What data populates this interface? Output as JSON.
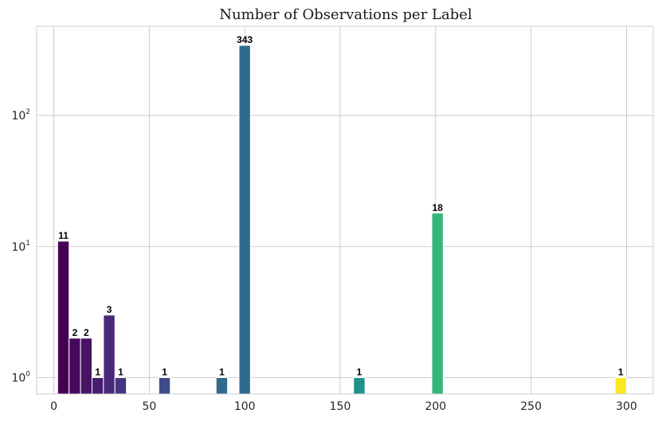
{
  "chart_data": {
    "type": "bar",
    "title": "Number of Observations per Label",
    "xlabel": "",
    "ylabel": "",
    "yscale": "log",
    "xlim": [
      -9,
      314
    ],
    "ylim": [
      0.75,
      480
    ],
    "grid": true,
    "xticks": [
      0,
      50,
      100,
      150,
      200,
      250,
      300
    ],
    "yticks": [
      {
        "value": 1,
        "base": "10",
        "exp": "0"
      },
      {
        "value": 10,
        "base": "10",
        "exp": "1"
      },
      {
        "value": 100,
        "base": "10",
        "exp": "2"
      }
    ],
    "bar_width": 6,
    "bars": [
      {
        "x": 5,
        "value": 11,
        "label": "11",
        "color": "#440154"
      },
      {
        "x": 11,
        "value": 2,
        "label": "2",
        "color": "#46085c"
      },
      {
        "x": 17,
        "value": 2,
        "label": "2",
        "color": "#471365"
      },
      {
        "x": 23,
        "value": 1,
        "label": "1",
        "color": "#481d6f"
      },
      {
        "x": 29,
        "value": 3,
        "label": "3",
        "color": "#482878"
      },
      {
        "x": 35,
        "value": 1,
        "label": "1",
        "color": "#45347f"
      },
      {
        "x": 58,
        "value": 1,
        "label": "1",
        "color": "#3e4a89"
      },
      {
        "x": 88,
        "value": 1,
        "label": "1",
        "color": "#31688e"
      },
      {
        "x": 100,
        "value": 343,
        "label": "343",
        "color": "#2e6b8e"
      },
      {
        "x": 160,
        "value": 1,
        "label": "1",
        "color": "#21918c"
      },
      {
        "x": 201,
        "value": 18,
        "label": "18",
        "color": "#35b779"
      },
      {
        "x": 297,
        "value": 1,
        "label": "1",
        "color": "#fde725"
      }
    ]
  }
}
